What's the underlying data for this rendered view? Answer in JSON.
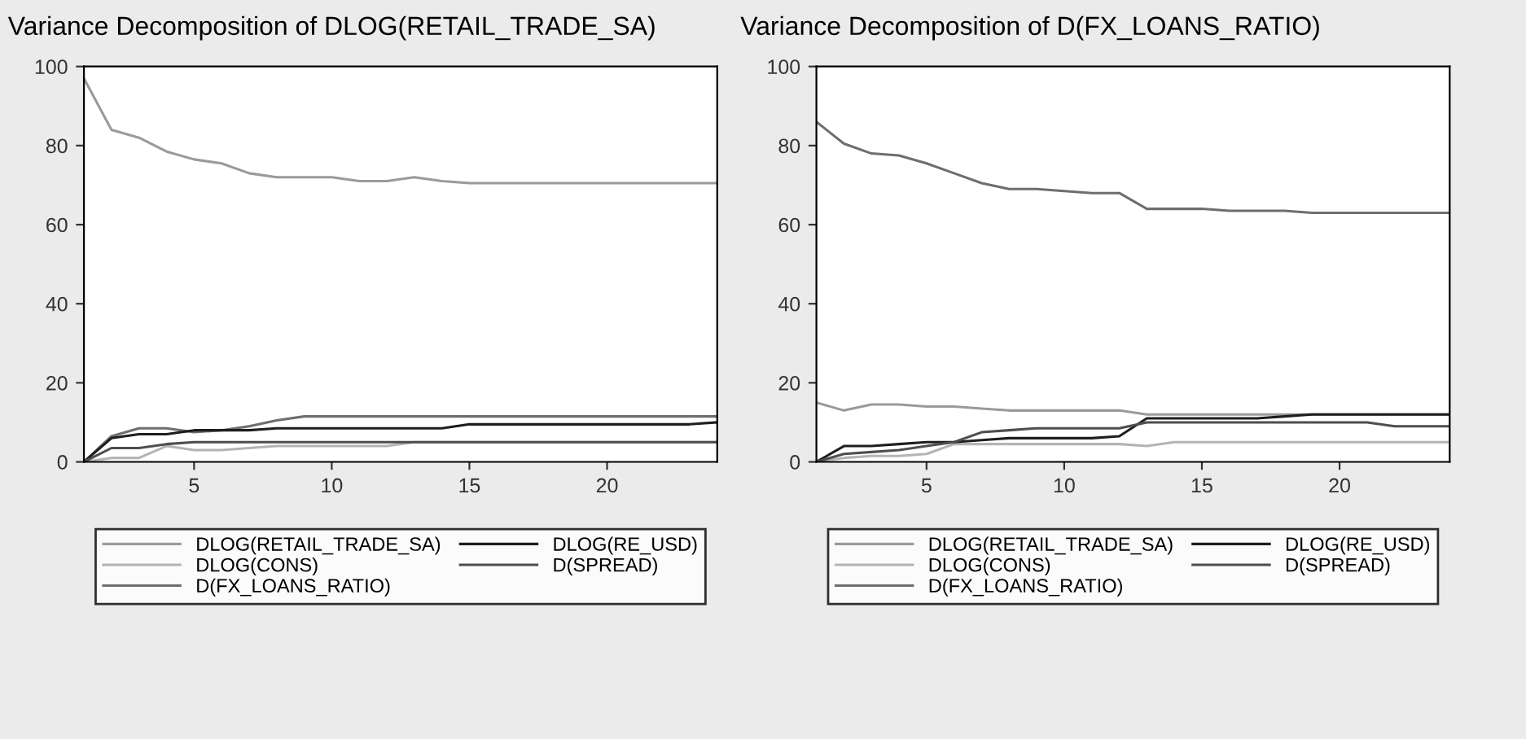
{
  "chart_data": [
    {
      "type": "line",
      "title": "Variance Decomposition of DLOG(RETAIL_TRADE_SA)",
      "x": [
        1,
        2,
        3,
        4,
        5,
        6,
        7,
        8,
        9,
        10,
        11,
        12,
        13,
        14,
        15,
        16,
        17,
        18,
        19,
        20,
        21,
        22,
        23,
        24
      ],
      "xlim": [
        1,
        24
      ],
      "xticks": [
        5,
        10,
        15,
        20
      ],
      "ylim": [
        0,
        100
      ],
      "yticks": [
        0,
        20,
        40,
        60,
        80,
        100
      ],
      "grid": false,
      "legend": "bottom",
      "series": [
        {
          "name": "DLOG(RETAIL_TRADE_SA)",
          "color": "#9a9a9a",
          "values": [
            97,
            84,
            82,
            78.5,
            76.5,
            75.5,
            73,
            72,
            72,
            72,
            71,
            71,
            72,
            71,
            70.5,
            70.5,
            70.5,
            70.5,
            70.5,
            70.5,
            70.5,
            70.5,
            70.5,
            70.5
          ]
        },
        {
          "name": "DLOG(CONS)",
          "color": "#b4b4b4",
          "values": [
            0,
            1,
            1,
            4,
            3,
            3,
            3.5,
            4,
            4,
            4,
            4,
            4,
            5,
            5,
            5,
            5,
            5,
            5,
            5,
            5,
            5,
            5,
            5,
            5
          ]
        },
        {
          "name": "D(FX_LOANS_RATIO)",
          "color": "#6e6e6e",
          "values": [
            0,
            6.5,
            8.5,
            8.5,
            7.5,
            8,
            9,
            10.5,
            11.5,
            11.5,
            11.5,
            11.5,
            11.5,
            11.5,
            11.5,
            11.5,
            11.5,
            11.5,
            11.5,
            11.5,
            11.5,
            11.5,
            11.5,
            11.5
          ]
        },
        {
          "name": "DLOG(RE_USD)",
          "color": "#1e1e1e",
          "values": [
            0,
            6,
            7,
            7,
            8,
            8,
            8,
            8.5,
            8.5,
            8.5,
            8.5,
            8.5,
            8.5,
            8.5,
            9.5,
            9.5,
            9.5,
            9.5,
            9.5,
            9.5,
            9.5,
            9.5,
            9.5,
            10
          ]
        },
        {
          "name": "D(SPREAD)",
          "color": "#4e4e4e",
          "values": [
            0,
            3.5,
            3.5,
            4.5,
            5,
            5,
            5,
            5,
            5,
            5,
            5,
            5,
            5,
            5,
            5,
            5,
            5,
            5,
            5,
            5,
            5,
            5,
            5,
            5
          ]
        }
      ]
    },
    {
      "type": "line",
      "title": "Variance Decomposition of D(FX_LOANS_RATIO)",
      "x": [
        1,
        2,
        3,
        4,
        5,
        6,
        7,
        8,
        9,
        10,
        11,
        12,
        13,
        14,
        15,
        16,
        17,
        18,
        19,
        20,
        21,
        22,
        23,
        24
      ],
      "xlim": [
        1,
        24
      ],
      "xticks": [
        5,
        10,
        15,
        20
      ],
      "ylim": [
        0,
        100
      ],
      "yticks": [
        0,
        20,
        40,
        60,
        80,
        100
      ],
      "grid": false,
      "legend": "bottom",
      "series": [
        {
          "name": "DLOG(RETAIL_TRADE_SA)",
          "color": "#9a9a9a",
          "values": [
            15,
            13,
            14.5,
            14.5,
            14,
            14,
            13.5,
            13,
            13,
            13,
            13,
            13,
            12,
            12,
            12,
            12,
            12,
            12,
            12,
            12,
            12,
            12,
            12,
            12
          ]
        },
        {
          "name": "DLOG(CONS)",
          "color": "#b4b4b4",
          "values": [
            0,
            1,
            1.5,
            1.5,
            2,
            4.5,
            4.5,
            4.5,
            4.5,
            4.5,
            4.5,
            4.5,
            4,
            5,
            5,
            5,
            5,
            5,
            5,
            5,
            5,
            5,
            5,
            5
          ]
        },
        {
          "name": "D(FX_LOANS_RATIO)",
          "color": "#6e6e6e",
          "values": [
            86,
            80.5,
            78,
            77.5,
            75.5,
            73,
            70.5,
            69,
            69,
            68.5,
            68,
            68,
            64,
            64,
            64,
            63.5,
            63.5,
            63.5,
            63,
            63,
            63,
            63,
            63,
            63
          ]
        },
        {
          "name": "DLOG(RE_USD)",
          "color": "#1e1e1e",
          "values": [
            0,
            4,
            4,
            4.5,
            5,
            5,
            5.5,
            6,
            6,
            6,
            6,
            6.5,
            11,
            11,
            11,
            11,
            11,
            11.5,
            12,
            12,
            12,
            12,
            12,
            12
          ]
        },
        {
          "name": "D(SPREAD)",
          "color": "#4e4e4e",
          "values": [
            0,
            2,
            2.5,
            3,
            4,
            5,
            7.5,
            8,
            8.5,
            8.5,
            8.5,
            8.5,
            10,
            10,
            10,
            10,
            10,
            10,
            10,
            10,
            10,
            9,
            9,
            9
          ]
        }
      ]
    }
  ]
}
